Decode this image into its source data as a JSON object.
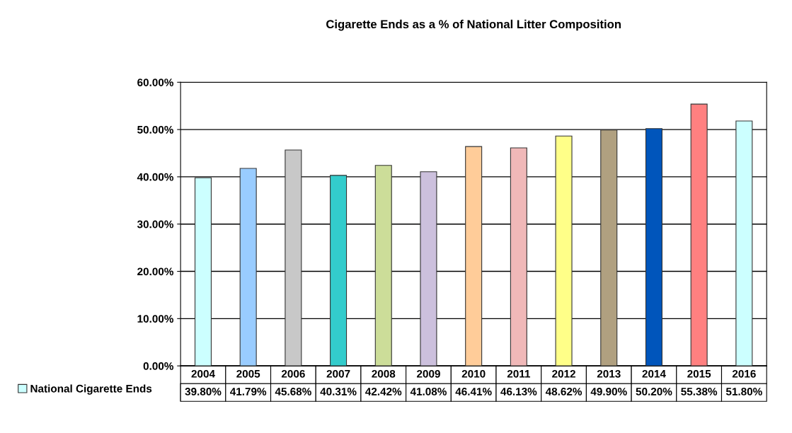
{
  "chart_data": {
    "type": "bar",
    "title": "Cigarette Ends as a % of National Litter Composition",
    "categories": [
      "2004",
      "2005",
      "2006",
      "2007",
      "2008",
      "2009",
      "2010",
      "2011",
      "2012",
      "2013",
      "2014",
      "2015",
      "2016"
    ],
    "series": [
      {
        "name": "National Cigarette Ends",
        "values": [
          39.8,
          41.79,
          45.68,
          40.31,
          42.42,
          41.08,
          46.41,
          46.13,
          48.62,
          49.9,
          50.2,
          55.38,
          51.8
        ],
        "value_labels": [
          "39.80%",
          "41.79%",
          "45.68%",
          "40.31%",
          "42.42%",
          "41.08%",
          "46.41%",
          "46.13%",
          "48.62%",
          "49.90%",
          "50.20%",
          "55.38%",
          "51.80%"
        ],
        "color": "#ccffff",
        "colors": [
          "#ccffff",
          "#99ccff",
          "#c8c8c8",
          "#33cccc",
          "#ccdd99",
          "#ccc0dd",
          "#ffcc99",
          "#f0b8b8",
          "#ffff88",
          "#b0a080",
          "#0055bb",
          "#ff8080",
          "#ccffff"
        ]
      }
    ],
    "ylim": [
      0,
      60
    ],
    "yticks": [
      {
        "value": 0,
        "label": "0.00%"
      },
      {
        "value": 10,
        "label": "10.00%"
      },
      {
        "value": 20,
        "label": "20.00%"
      },
      {
        "value": 30,
        "label": "30.00%"
      },
      {
        "value": 40,
        "label": "40.00%"
      },
      {
        "value": 50,
        "label": "50.00%"
      },
      {
        "value": 60,
        "label": "60.00%"
      }
    ],
    "grid": "y",
    "legend": "bottom left"
  }
}
